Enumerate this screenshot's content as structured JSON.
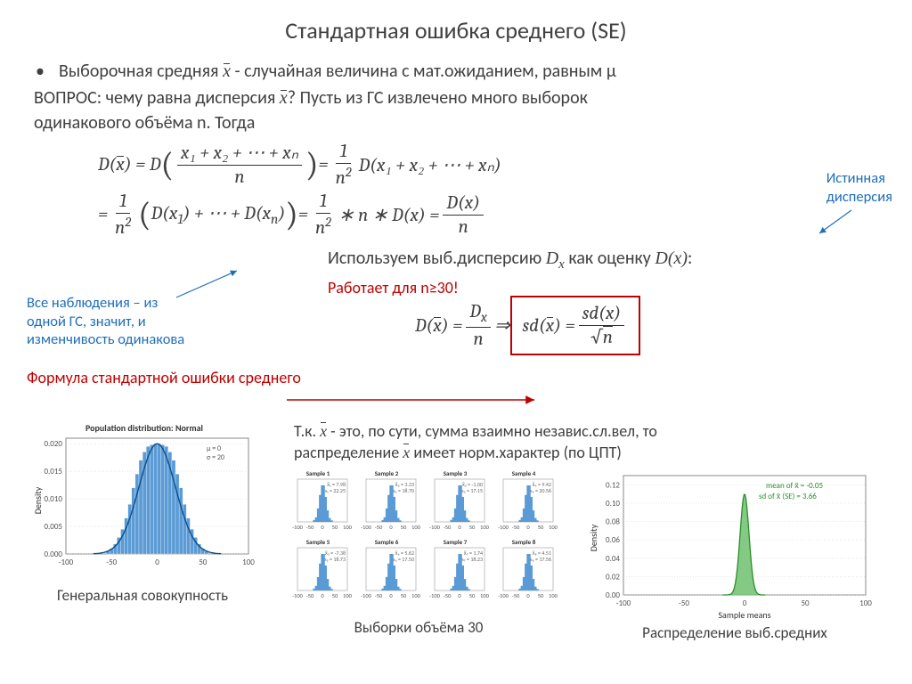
{
  "title": "Стандартная ошибка среднего (SE)",
  "bullet1_pre": "Выборочная средняя ",
  "bullet1_x": "x̄",
  "bullet1_post": " - случайная величина с мат.ожиданием, равным µ",
  "question_pre": "ВОПРОС: чему равна дисперсия ",
  "question_x": "x̄",
  "question_post": "? Пусть из ГС извлечено много выборок",
  "question_line2": "одинакового объёма n. Тогда",
  "eq1": {
    "lhs": "D(x̄) = D",
    "num1": "x₁ + x₂ + ⋯ + xₙ",
    "den1": "n",
    "mid1": " = ",
    "num2": "1",
    "den2": "n²",
    "tail1": " D(x₁ + x₂ + ⋯ + xₙ)"
  },
  "eq2": {
    "lead": "= ",
    "num1": "1",
    "den1": "n²",
    "mid1": " (D(x₁) + ⋯ + D(xₙ)) = ",
    "num2": "1",
    "den2": "n²",
    "mid2": " ∗ n ∗ D(x) = ",
    "num3": "D(x)",
    "den3": "n"
  },
  "note_true_var": "Истинная\nдисперсия",
  "note_same_gc": "Все наблюдения – из\nодной ГС, значит, и\nизменчивость одинакова",
  "mid_text_pre": "Используем выб.дисперсию ",
  "mid_dx": "Dₓ",
  "mid_text_mid": " как оценку  ",
  "mid_dx2": "D(x)",
  "mid_text_post": ":",
  "red_works": "Работает для n≥30!",
  "boxed": {
    "lead": "D(x̄) = ",
    "num1": "Dₓ",
    "den1": "n",
    "mid": " ⇒ sd(x̄) = ",
    "num2": "sd(x)",
    "den2": "√n"
  },
  "formula_label": "Формула стандартной ошибки среднего",
  "below1_pre": "Т.к. ",
  "below1_x": "x̄",
  "below1_post": " - это, по сути, сумма взаимно независ.сл.вел, то",
  "below2_pre": "распределение ",
  "below2_x": "x̄",
  "below2_post": " имеет норм.характер (по ЦПТ)",
  "pop_chart": {
    "title": "Population distribution: Normal",
    "x_ticks": [
      -100,
      -50,
      0,
      50,
      100
    ],
    "y_ticks": [
      "0.000",
      "0.005",
      "0.010",
      "0.015",
      "0.020"
    ],
    "y_label": "Density",
    "legend_mu": "µ = 0",
    "legend_sigma": "σ = 20",
    "bar_color": "#5b9bd5",
    "line_color": "#0a4f8a",
    "bars": [
      [
        -54,
        0.0005
      ],
      [
        -50,
        0.001
      ],
      [
        -46,
        0.0018
      ],
      [
        -42,
        0.003
      ],
      [
        -38,
        0.0045
      ],
      [
        -34,
        0.0065
      ],
      [
        -30,
        0.009
      ],
      [
        -26,
        0.012
      ],
      [
        -22,
        0.0145
      ],
      [
        -18,
        0.017
      ],
      [
        -14,
        0.0185
      ],
      [
        -10,
        0.0195
      ],
      [
        -6,
        0.0198
      ],
      [
        -2,
        0.02
      ],
      [
        2,
        0.02
      ],
      [
        6,
        0.0198
      ],
      [
        10,
        0.0195
      ],
      [
        14,
        0.0185
      ],
      [
        18,
        0.017
      ],
      [
        22,
        0.0145
      ],
      [
        26,
        0.012
      ],
      [
        30,
        0.009
      ],
      [
        34,
        0.0065
      ],
      [
        38,
        0.0045
      ],
      [
        42,
        0.003
      ],
      [
        46,
        0.0018
      ],
      [
        50,
        0.001
      ],
      [
        54,
        0.0005
      ]
    ]
  },
  "caption_pop": "Генеральная совокупность",
  "samples": {
    "titles": [
      "Sample 1",
      "Sample 2",
      "Sample 3",
      "Sample 4",
      "Sample 5",
      "Sample 6",
      "Sample 7",
      "Sample 8"
    ],
    "stats": [
      [
        "x̄₁ = 7.98",
        "s₁ = 22.25"
      ],
      [
        "x̄₂ = 3.33",
        "s₂ = 18.70"
      ],
      [
        "x̄₃ = -1.00",
        "s₃ = 17.15"
      ],
      [
        "x̄₄ = 9.42",
        "s₄ = 20.56"
      ],
      [
        "x̄₅ = -7.38",
        "s₅ = 18.73"
      ],
      [
        "x̄₆ = 5.62",
        "s₆ = 17.50"
      ],
      [
        "x̄₇ = 1.74",
        "s₇ = 18.23"
      ],
      [
        "x̄₈ = 4.51",
        "s₈ = 17.56"
      ]
    ],
    "x_ticks": [
      -100,
      -50,
      0,
      50,
      100
    ],
    "bar_color": "#5b9bd5"
  },
  "caption_samples": "Выборки объёма 30",
  "dist_chart": {
    "x_ticks": [
      -100,
      -50,
      0,
      50,
      100
    ],
    "y_ticks": [
      "0.00",
      "0.02",
      "0.04",
      "0.06",
      "0.08",
      "0.10",
      "0.12"
    ],
    "y_label": "Density",
    "x_label": "Sample means",
    "legend1": "mean of  x̄ = -0.05",
    "legend2": "sd of  x̄ (SE) = 3.66",
    "fill_color": "#6fbf6f",
    "line_color": "#2a8f2a"
  },
  "caption_dist": "Распределение выб.средних",
  "colors": {
    "blue": "#1f6fb8",
    "red": "#c00000",
    "text": "#404040"
  }
}
